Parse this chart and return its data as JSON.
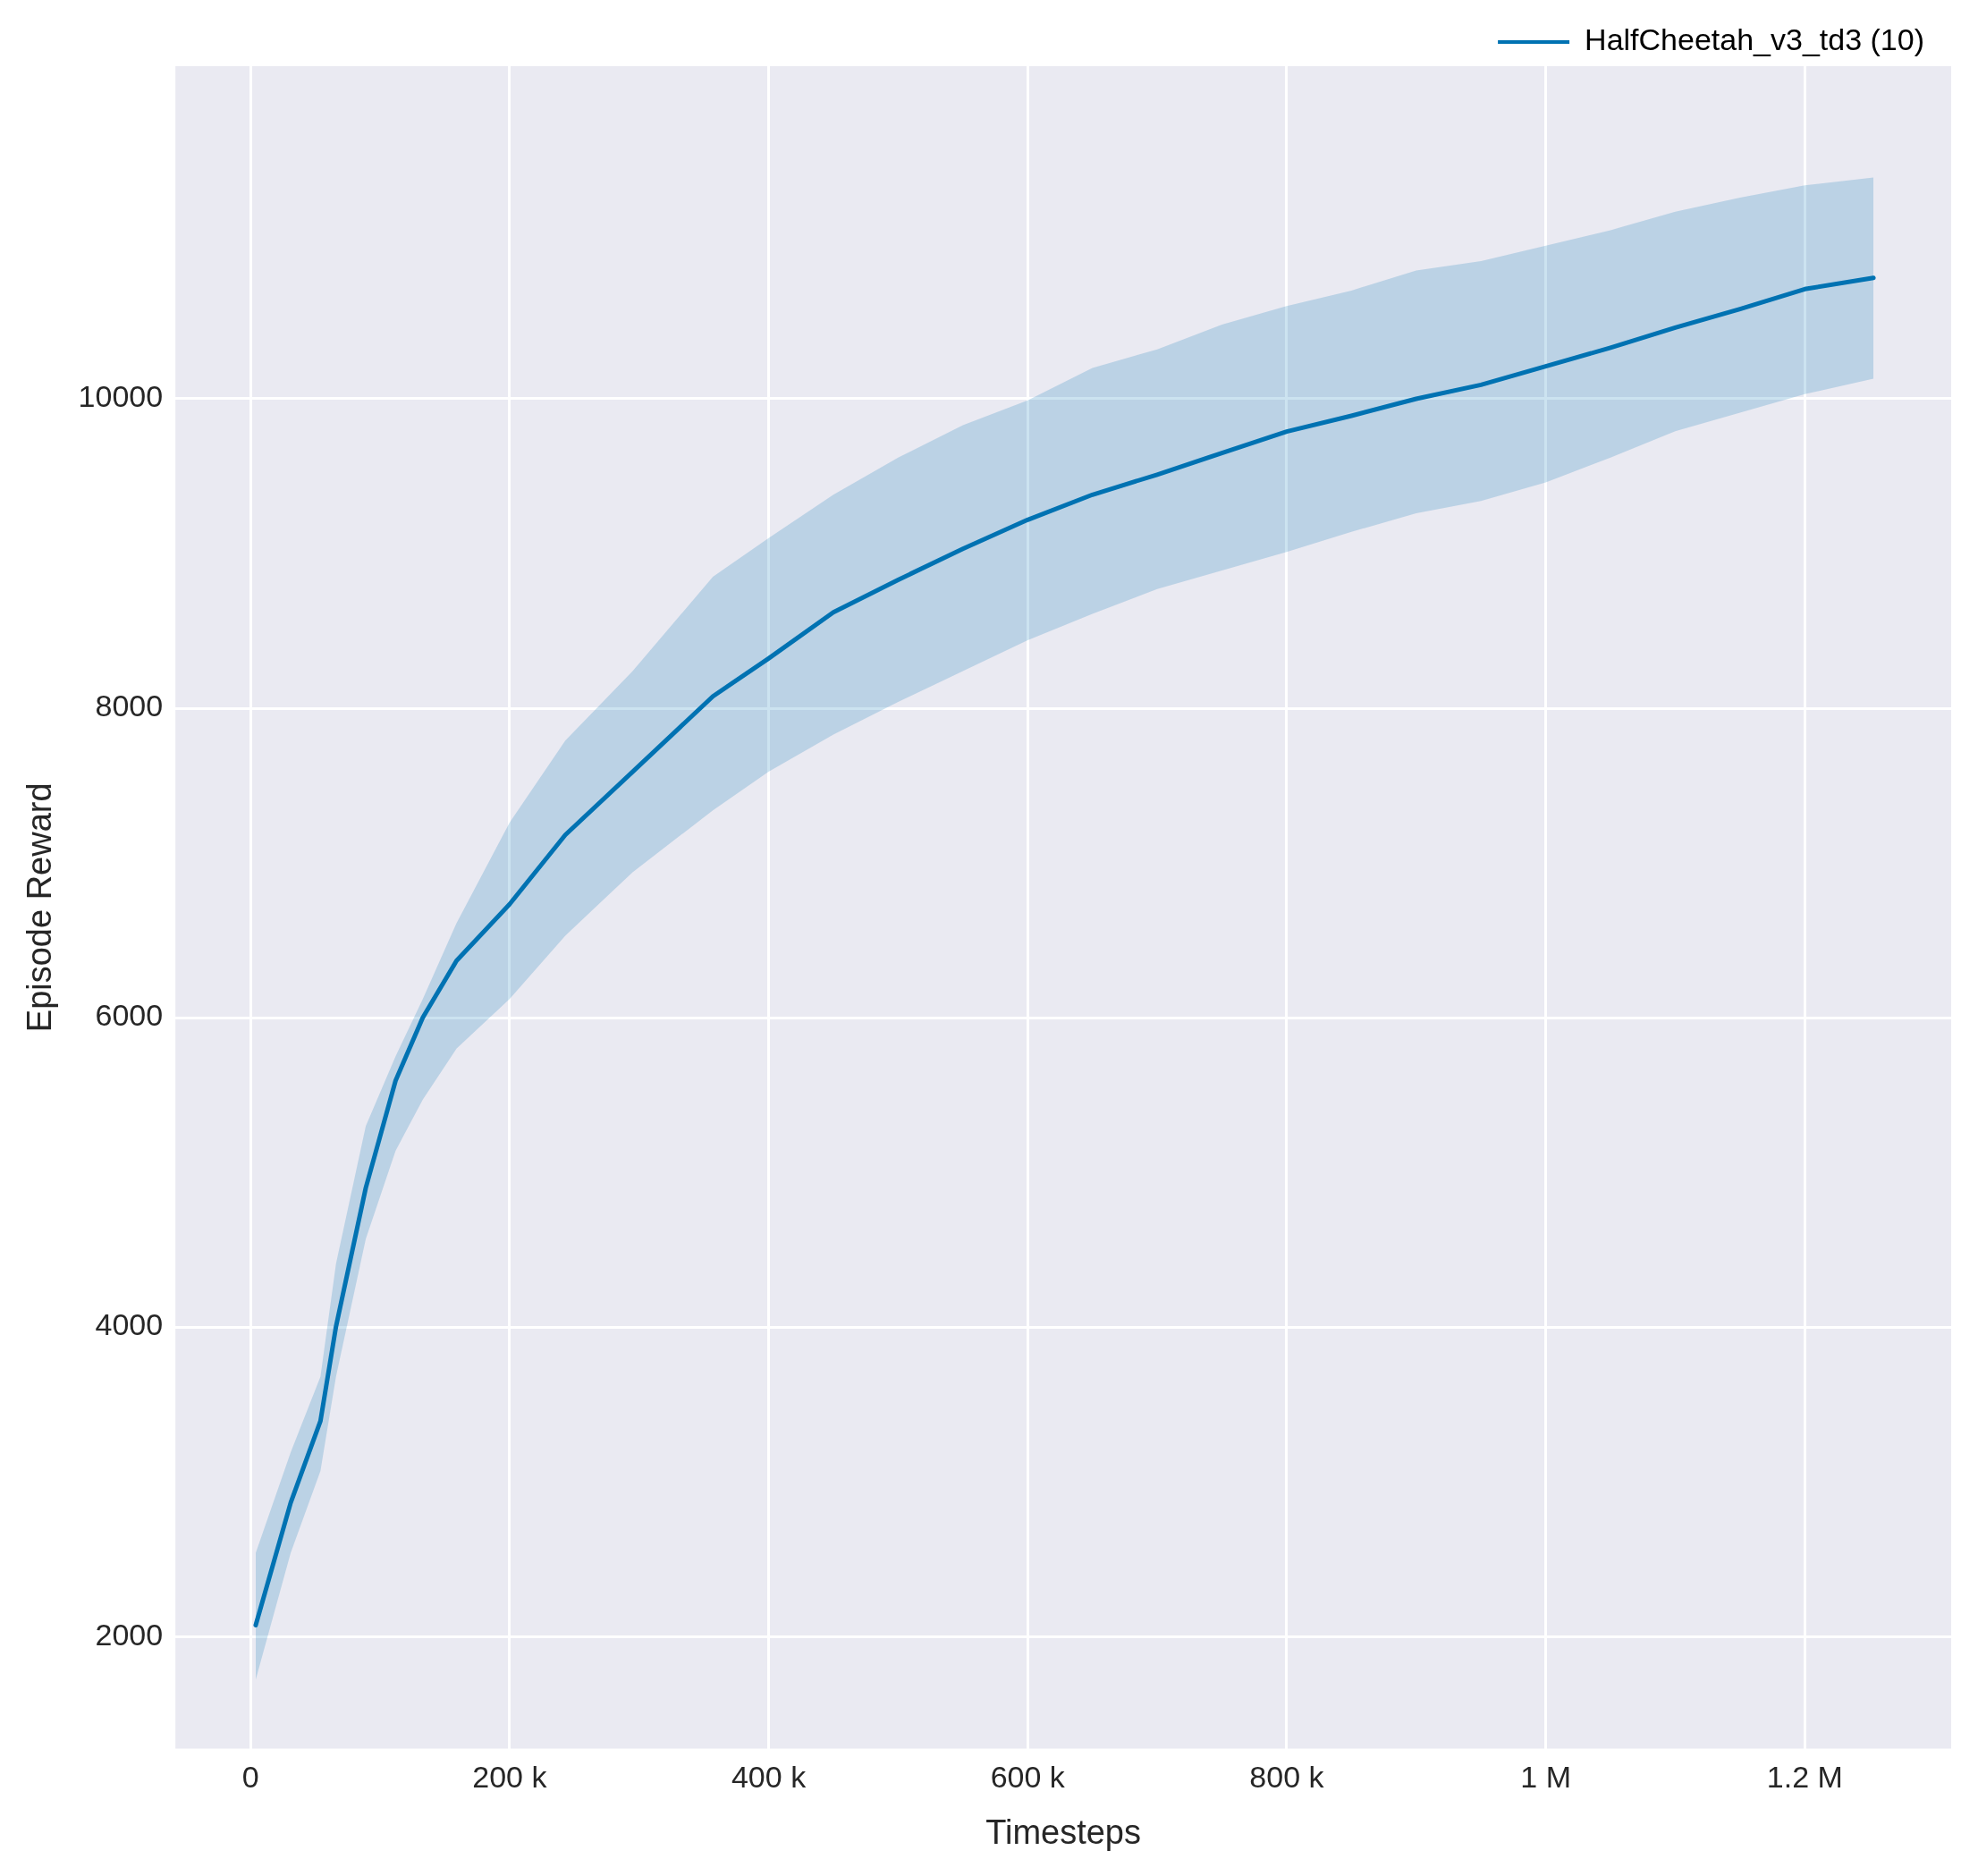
{
  "chart_data": {
    "type": "line",
    "xlabel": "Timesteps",
    "ylabel": "Episode Reward",
    "xlim": [
      -58000,
      1313000
    ],
    "ylim": [
      1275,
      12150
    ],
    "xticks": [
      {
        "value": 0,
        "label": "0"
      },
      {
        "value": 200000,
        "label": "200 k"
      },
      {
        "value": 400000,
        "label": "400 k"
      },
      {
        "value": 600000,
        "label": "600 k"
      },
      {
        "value": 800000,
        "label": "800 k"
      },
      {
        "value": 1000000,
        "label": "1 M"
      },
      {
        "value": 1200000,
        "label": "1.2 M"
      }
    ],
    "yticks": [
      2000,
      4000,
      6000,
      8000,
      10000
    ],
    "grid": true,
    "legend": "top right",
    "marker": "none",
    "line_style": "solid",
    "series": [
      {
        "name": "HalfCheetah_v3_td3 (10)",
        "color": "#0072b2",
        "x": [
          4000,
          31000,
          54000,
          66000,
          89000,
          112000,
          133000,
          159000,
          200000,
          243000,
          295000,
          357000,
          400000,
          450000,
          500000,
          550000,
          600000,
          650000,
          700000,
          750000,
          800000,
          850000,
          900000,
          950000,
          1000000,
          1050000,
          1100000,
          1150000,
          1200000,
          1253000
        ],
        "values": [
          2073,
          2864,
          3393,
          4004,
          4900,
          5593,
          6000,
          6367,
          6733,
          7181,
          7589,
          8077,
          8322,
          8620,
          8830,
          9030,
          9218,
          9380,
          9510,
          9650,
          9788,
          9890,
          10000,
          10090,
          10210,
          10330,
          10460,
          10580,
          10709,
          10782
        ],
        "upper": [
          2540,
          3190,
          3680,
          4410,
          5300,
          5750,
          6120,
          6610,
          7260,
          7790,
          8240,
          8850,
          9100,
          9380,
          9620,
          9830,
          9990,
          10200,
          10320,
          10480,
          10600,
          10700,
          10830,
          10890,
          10990,
          11090,
          11210,
          11300,
          11380,
          11430
        ],
        "lower": [
          1720,
          2540,
          3070,
          3680,
          4570,
          5140,
          5470,
          5800,
          6120,
          6530,
          6940,
          7340,
          7590,
          7830,
          8040,
          8240,
          8440,
          8610,
          8770,
          8890,
          9010,
          9140,
          9260,
          9340,
          9460,
          9620,
          9790,
          9910,
          10030,
          10130
        ]
      }
    ]
  }
}
